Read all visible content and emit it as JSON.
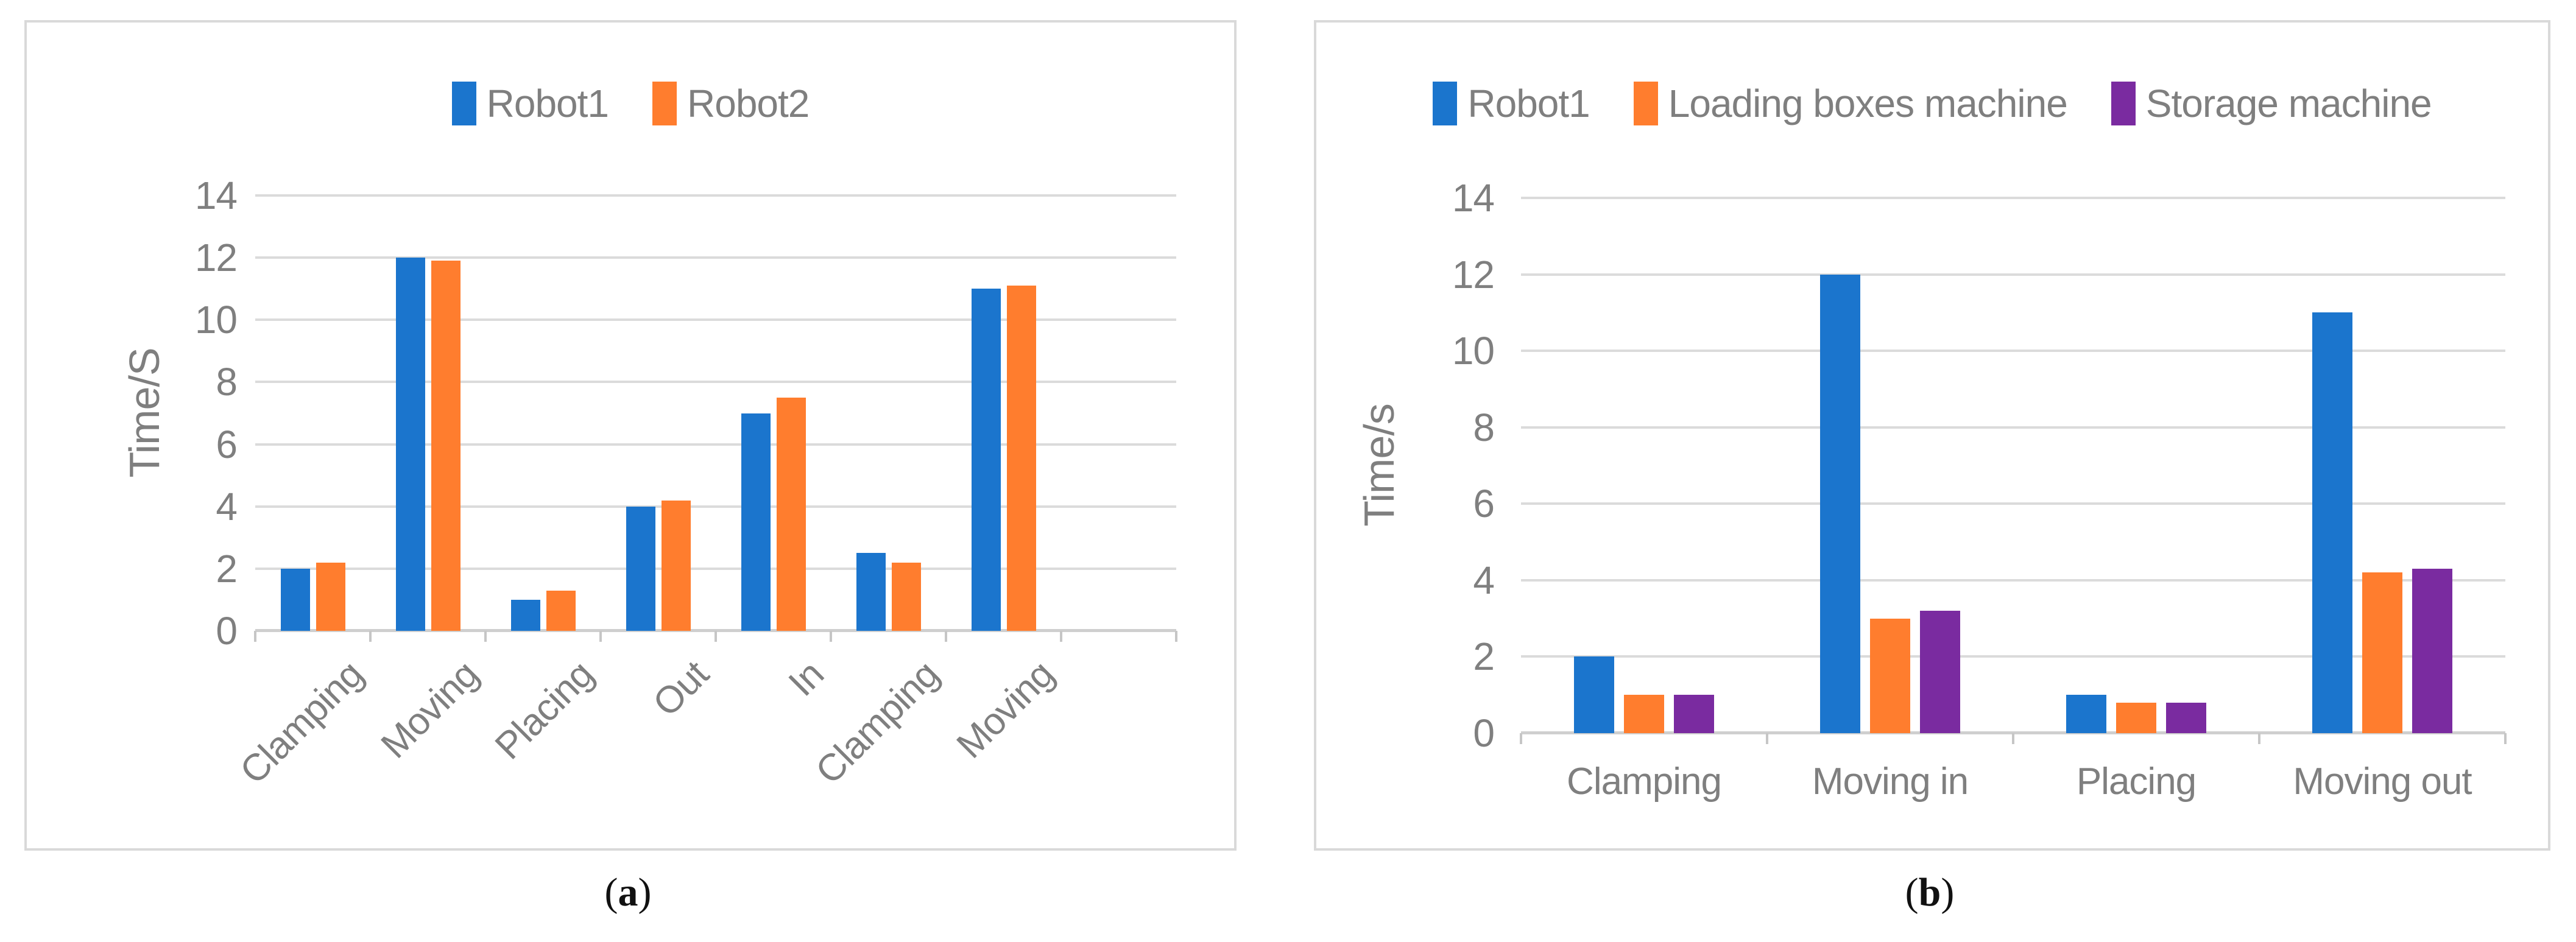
{
  "colors": {
    "robot1_blue": "#1B75CD",
    "orange": "#FF7D2E",
    "purple": "#7A2BA0",
    "gridline_gray": "#DBDBDB",
    "axis_gray": "#CFCFCF",
    "label_gray": "#7F7F7F",
    "panel_border_gray": "#D9D9D9"
  },
  "captions": [
    {
      "pre": "(",
      "label": "a",
      "post": ")"
    },
    {
      "pre": "(",
      "label": "b",
      "post": ")"
    }
  ],
  "chart_data": [
    {
      "id": "a",
      "type": "bar",
      "title": "",
      "xlabel": "",
      "ylabel": "Time/S",
      "ylim": [
        0,
        14
      ],
      "ytick_step": 2,
      "grid": true,
      "legend_position": "top-center",
      "xlabel_rotation": -45,
      "trailing_empty_slots": 1,
      "categories": [
        "Clamping",
        "Moving",
        "Placing",
        "Out",
        "In",
        "Clamping",
        "Moving"
      ],
      "series": [
        {
          "name": "Robot1",
          "color": "#1B75CD",
          "values": [
            2,
            12,
            1,
            4,
            7,
            2.5,
            11
          ]
        },
        {
          "name": "Robot2",
          "color": "#FF7D2E",
          "values": [
            2.2,
            11.9,
            1.3,
            4.2,
            7.5,
            2.2,
            11.1
          ]
        }
      ]
    },
    {
      "id": "b",
      "type": "bar",
      "title": "",
      "xlabel": "",
      "ylabel": "Time/s",
      "ylim": [
        0,
        14
      ],
      "ytick_step": 2,
      "grid": true,
      "legend_position": "top-center",
      "xlabel_rotation": 0,
      "trailing_empty_slots": 0,
      "categories": [
        "Clamping",
        "Moving in",
        "Placing",
        "Moving out"
      ],
      "series": [
        {
          "name": "Robot1",
          "color": "#1B75CD",
          "values": [
            2,
            12,
            1,
            11
          ]
        },
        {
          "name": "Loading boxes machine",
          "color": "#FF7D2E",
          "values": [
            1,
            3,
            0.8,
            4.2
          ]
        },
        {
          "name": "Storage machine",
          "color": "#7A2BA0",
          "values": [
            1,
            3.2,
            0.8,
            4.3
          ]
        }
      ]
    }
  ]
}
